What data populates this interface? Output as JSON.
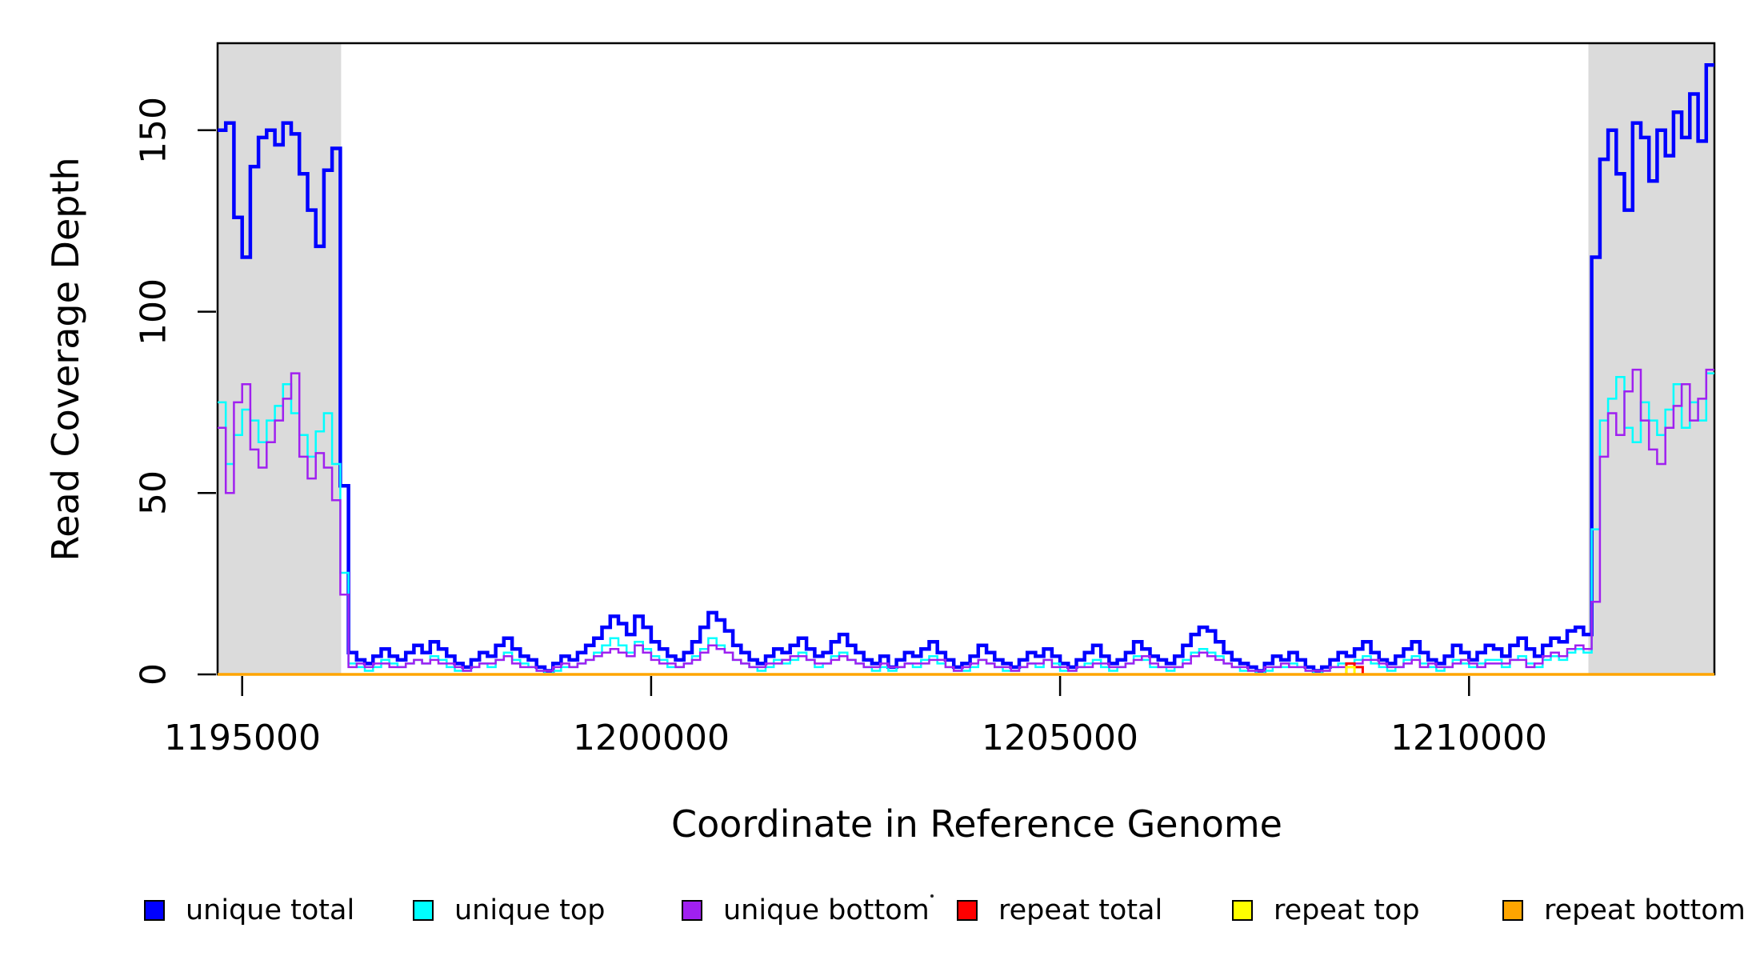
{
  "chart_data": {
    "type": "line",
    "step_plot": true,
    "title": "",
    "xlabel": "Coordinate in Reference Genome",
    "ylabel": "Read Coverage Depth",
    "grid": false,
    "legend_position": "bottom",
    "xlim": [
      1194700,
      1213000
    ],
    "ylim": [
      0,
      174
    ],
    "x_start": 1194700,
    "x_step": 100,
    "n_points": 183,
    "x_ticks": [
      {
        "value": 1195000,
        "label": "1195000"
      },
      {
        "value": 1200000,
        "label": "1200000"
      },
      {
        "value": 1205000,
        "label": "1205000"
      },
      {
        "value": 1210000,
        "label": "1210000"
      }
    ],
    "y_ticks": [
      {
        "value": 0,
        "label": "0"
      },
      {
        "value": 50,
        "label": "50"
      },
      {
        "value": 100,
        "label": "100"
      },
      {
        "value": 150,
        "label": "150"
      }
    ],
    "highlight_regions": [
      {
        "x0": 1194700,
        "x1": 1196210,
        "color": "#DBDBDB"
      },
      {
        "x0": 1211460,
        "x1": 1213000,
        "color": "#DBDBDB"
      }
    ],
    "series": [
      {
        "name": "unique total",
        "color": "#0000FF",
        "lwd": 4.5,
        "values": [
          150,
          152,
          126,
          115,
          140,
          148,
          150,
          146,
          152,
          149,
          138,
          128,
          118,
          139,
          145,
          52,
          6,
          4,
          3,
          5,
          7,
          5,
          4,
          6,
          8,
          6,
          9,
          7,
          5,
          3,
          2,
          4,
          6,
          5,
          8,
          10,
          7,
          5,
          4,
          2,
          1,
          3,
          5,
          4,
          6,
          8,
          10,
          13,
          16,
          14,
          11,
          16,
          13,
          9,
          7,
          5,
          4,
          6,
          9,
          13,
          17,
          15,
          12,
          8,
          6,
          4,
          3,
          5,
          7,
          6,
          8,
          10,
          7,
          5,
          6,
          9,
          11,
          8,
          6,
          4,
          3,
          5,
          2,
          4,
          6,
          5,
          7,
          9,
          6,
          4,
          2,
          3,
          5,
          8,
          6,
          4,
          3,
          2,
          4,
          6,
          5,
          7,
          5,
          3,
          2,
          4,
          6,
          8,
          5,
          3,
          4,
          6,
          9,
          7,
          5,
          4,
          3,
          5,
          8,
          11,
          13,
          12,
          9,
          6,
          4,
          3,
          2,
          1,
          3,
          5,
          4,
          6,
          4,
          2,
          1,
          2,
          4,
          6,
          5,
          7,
          9,
          6,
          4,
          3,
          5,
          7,
          9,
          6,
          4,
          3,
          5,
          8,
          6,
          4,
          6,
          8,
          7,
          5,
          8,
          10,
          7,
          5,
          8,
          10,
          9,
          12,
          13,
          11,
          115,
          142,
          150,
          138,
          128,
          152,
          148,
          136,
          150,
          143,
          155,
          148,
          160,
          147,
          168
        ]
      },
      {
        "name": "unique top",
        "color": "#00FFFF",
        "lwd": 2.5,
        "values": [
          75,
          58,
          66,
          73,
          70,
          64,
          70,
          74,
          80,
          72,
          66,
          60,
          67,
          72,
          58,
          28,
          3,
          2,
          1,
          2,
          4,
          3,
          2,
          3,
          4,
          3,
          5,
          4,
          2,
          1,
          1,
          2,
          3,
          2,
          4,
          6,
          4,
          3,
          2,
          1,
          0,
          1,
          2,
          2,
          3,
          4,
          6,
          8,
          10,
          8,
          6,
          9,
          7,
          5,
          4,
          2,
          2,
          3,
          5,
          7,
          10,
          8,
          6,
          4,
          3,
          2,
          1,
          2,
          4,
          3,
          4,
          6,
          4,
          2,
          3,
          5,
          6,
          4,
          3,
          2,
          1,
          2,
          1,
          2,
          3,
          2,
          4,
          5,
          3,
          2,
          1,
          1,
          2,
          4,
          3,
          2,
          1,
          1,
          2,
          3,
          2,
          4,
          3,
          1,
          1,
          2,
          3,
          4,
          2,
          1,
          2,
          3,
          5,
          4,
          2,
          2,
          1,
          2,
          4,
          6,
          7,
          6,
          5,
          3,
          2,
          1,
          1,
          0,
          1,
          2,
          2,
          3,
          2,
          1,
          0,
          1,
          2,
          3,
          2,
          4,
          5,
          3,
          2,
          1,
          2,
          4,
          5,
          3,
          2,
          1,
          2,
          4,
          3,
          2,
          3,
          4,
          4,
          2,
          4,
          5,
          3,
          2,
          4,
          5,
          4,
          6,
          7,
          6,
          40,
          70,
          76,
          82,
          68,
          64,
          75,
          70,
          66,
          73,
          80,
          68,
          75,
          70,
          83
        ]
      },
      {
        "name": "unique bottom",
        "color": "#A020F0",
        "lwd": 2.5,
        "values": [
          68,
          50,
          75,
          80,
          62,
          57,
          64,
          70,
          76,
          83,
          60,
          54,
          61,
          57,
          48,
          22,
          2,
          3,
          2,
          3,
          3,
          2,
          2,
          3,
          4,
          3,
          4,
          3,
          3,
          2,
          1,
          2,
          3,
          3,
          4,
          5,
          3,
          2,
          2,
          1,
          1,
          2,
          3,
          2,
          3,
          4,
          5,
          6,
          7,
          6,
          5,
          8,
          6,
          4,
          3,
          3,
          2,
          3,
          4,
          6,
          8,
          7,
          6,
          4,
          3,
          2,
          2,
          3,
          3,
          4,
          5,
          5,
          4,
          3,
          3,
          4,
          5,
          4,
          3,
          2,
          2,
          3,
          2,
          2,
          3,
          3,
          3,
          4,
          4,
          2,
          1,
          2,
          3,
          4,
          3,
          2,
          2,
          1,
          2,
          3,
          3,
          4,
          2,
          2,
          1,
          2,
          2,
          3,
          3,
          2,
          2,
          3,
          4,
          5,
          3,
          2,
          2,
          2,
          3,
          5,
          6,
          5,
          4,
          3,
          2,
          2,
          1,
          1,
          2,
          2,
          3,
          2,
          2,
          1,
          1,
          1,
          2,
          2,
          3,
          3,
          4,
          4,
          3,
          2,
          2,
          3,
          4,
          2,
          3,
          2,
          2,
          3,
          4,
          3,
          2,
          3,
          3,
          3,
          4,
          4,
          2,
          3,
          5,
          6,
          5,
          7,
          8,
          7,
          20,
          60,
          72,
          66,
          78,
          84,
          70,
          62,
          58,
          68,
          74,
          80,
          70,
          76,
          84
        ]
      },
      {
        "name": "repeat total",
        "color": "#FF0000",
        "lwd": 3,
        "constant": 0,
        "bumps": [
          {
            "i": 138,
            "v": 3
          },
          {
            "i": 139,
            "v": 2
          }
        ]
      },
      {
        "name": "repeat top",
        "color": "#FFFF00",
        "lwd": 3,
        "constant": 0,
        "bumps": [
          {
            "i": 138,
            "v": 2
          }
        ]
      },
      {
        "name": "repeat bottom",
        "color": "#FFA500",
        "lwd": 3.5,
        "constant": 0
      }
    ],
    "legend": [
      {
        "label": "unique total",
        "color": "#0000FF"
      },
      {
        "label": "unique top",
        "color": "#00FFFF"
      },
      {
        "label": "unique bottom",
        "color": "#A020F0"
      },
      {
        "label": "repeat total",
        "color": "#FF0000"
      },
      {
        "label": "repeat top",
        "color": "#FFFF00"
      },
      {
        "label": "repeat bottom",
        "color": "#FFA500"
      }
    ]
  }
}
